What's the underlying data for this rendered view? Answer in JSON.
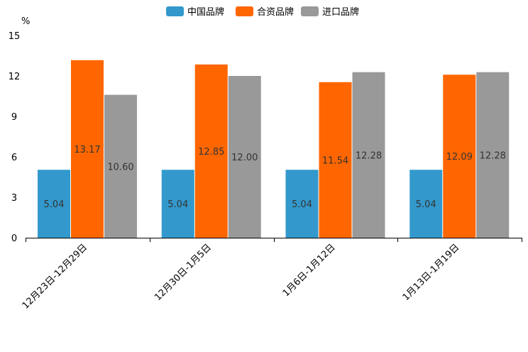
{
  "chart_data": {
    "type": "bar",
    "title": "",
    "xlabel": "",
    "ylabel": "%",
    "ylim": [
      0,
      15
    ],
    "yticks": [
      0,
      3,
      6,
      9,
      12,
      15
    ],
    "legend_position": "top-center",
    "categories": [
      "12月23日-12月29日",
      "12月30日-1月5日",
      "1月6日-1月12日",
      "1月13日-1月19日"
    ],
    "series": [
      {
        "name": "中国品牌",
        "color": "#3399cc",
        "values": [
          5.04,
          5.04,
          5.04,
          5.04
        ]
      },
      {
        "name": "合资品牌",
        "color": "#ff6600",
        "values": [
          13.17,
          12.85,
          11.54,
          12.09
        ]
      },
      {
        "name": "进口品牌",
        "color": "#999999",
        "values": [
          10.6,
          12.0,
          12.28,
          12.28
        ]
      }
    ]
  }
}
